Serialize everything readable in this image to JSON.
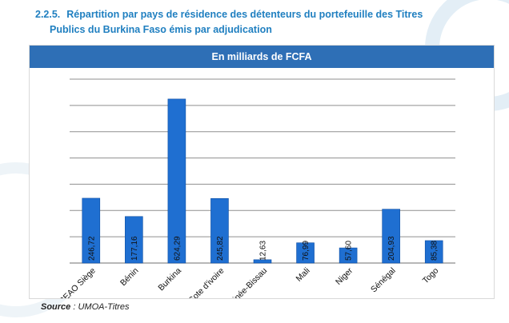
{
  "heading": {
    "number": "2.2.5.",
    "line1": "Répartition par pays de résidence des détenteurs du portefeuille des Titres",
    "line2": "Publics du Burkina Faso émis par adjudication"
  },
  "source": {
    "label": "Source",
    "text": ": UMOA-Titres"
  },
  "chart_data": {
    "type": "bar",
    "title": "En milliards de FCFA",
    "xlabel": "",
    "ylabel": "",
    "categories": [
      "BCEAO Siège",
      "Bénin",
      "Burkina",
      "Cote d'ivoire",
      "Guinée-Bissau",
      "Mali",
      "Niger",
      "Sénégal",
      "Togo"
    ],
    "values": [
      246.72,
      177.16,
      624.29,
      245.82,
      12.63,
      76.99,
      57.6,
      204.93,
      85.38
    ],
    "value_labels": [
      "246,72",
      "177,16",
      "624,29",
      "245,82",
      "12,63",
      "76,99",
      "57,60",
      "204,93",
      "85,38"
    ],
    "ylim": [
      0,
      700
    ],
    "grid": true,
    "legend": "none",
    "colors": {
      "bar": "#1f6fd1",
      "bar_edge": "#0d4ea3",
      "banner": "#2e6fb6",
      "heading": "#1f7fc0"
    }
  }
}
